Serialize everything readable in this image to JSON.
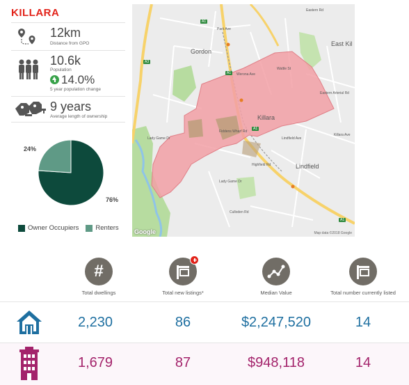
{
  "suburb": "KILLARA",
  "stats": {
    "distance": {
      "value": "12km",
      "label": "Distance from GPO",
      "icon": "location-route-icon"
    },
    "population": {
      "value": "10.6k",
      "label": "Population",
      "growth": "14.0%",
      "growth_label": "5 year population change",
      "icon": "people-icon"
    },
    "ownership": {
      "value": "9 years",
      "label": "Average length of ownership",
      "icon": "keys-icon"
    }
  },
  "chart_data": {
    "type": "pie",
    "categories": [
      "Owner Occupiers",
      "Renters"
    ],
    "values": [
      76,
      24
    ],
    "labels": [
      "76%",
      "24%"
    ],
    "colors": [
      "#0d4a3c",
      "#5f9a86"
    ],
    "legend": "bottom"
  },
  "map": {
    "places": [
      "Gordon",
      "Killara",
      "Lindfield",
      "East Kil"
    ],
    "roads": [
      "Park Ave",
      "Werona Ave",
      "Wattle St",
      "Fiddens Wharf Rd",
      "Highfield Rd",
      "Lady Game Dr",
      "Lady Game Dr",
      "Culloden Rd",
      "Lindfield Ave",
      "Eastern Arterial Rd",
      "Eastern Rd",
      "Killara Ave"
    ],
    "shields": [
      "A1",
      "A3",
      "A1",
      "A1",
      "A1"
    ],
    "copyright": "Map data ©2018 Google",
    "logo": "Google"
  },
  "table": {
    "columns": [
      {
        "label": "Total dwellings",
        "icon": "hash-icon"
      },
      {
        "label": "Total new listings*",
        "icon": "new-listing-sign-icon"
      },
      {
        "label": "Median Value",
        "icon": "trend-line-icon"
      },
      {
        "label": "Total number currently listed",
        "icon": "listing-sign-icon"
      }
    ],
    "rows": [
      {
        "type": "house",
        "icon": "house-icon",
        "color": "#1e6fa0",
        "values": [
          "2,230",
          "86",
          "$2,247,520",
          "14"
        ]
      },
      {
        "type": "unit",
        "icon": "apartment-icon",
        "color": "#a3236b",
        "values": [
          "1,679",
          "87",
          "$948,118",
          "14"
        ]
      }
    ]
  }
}
